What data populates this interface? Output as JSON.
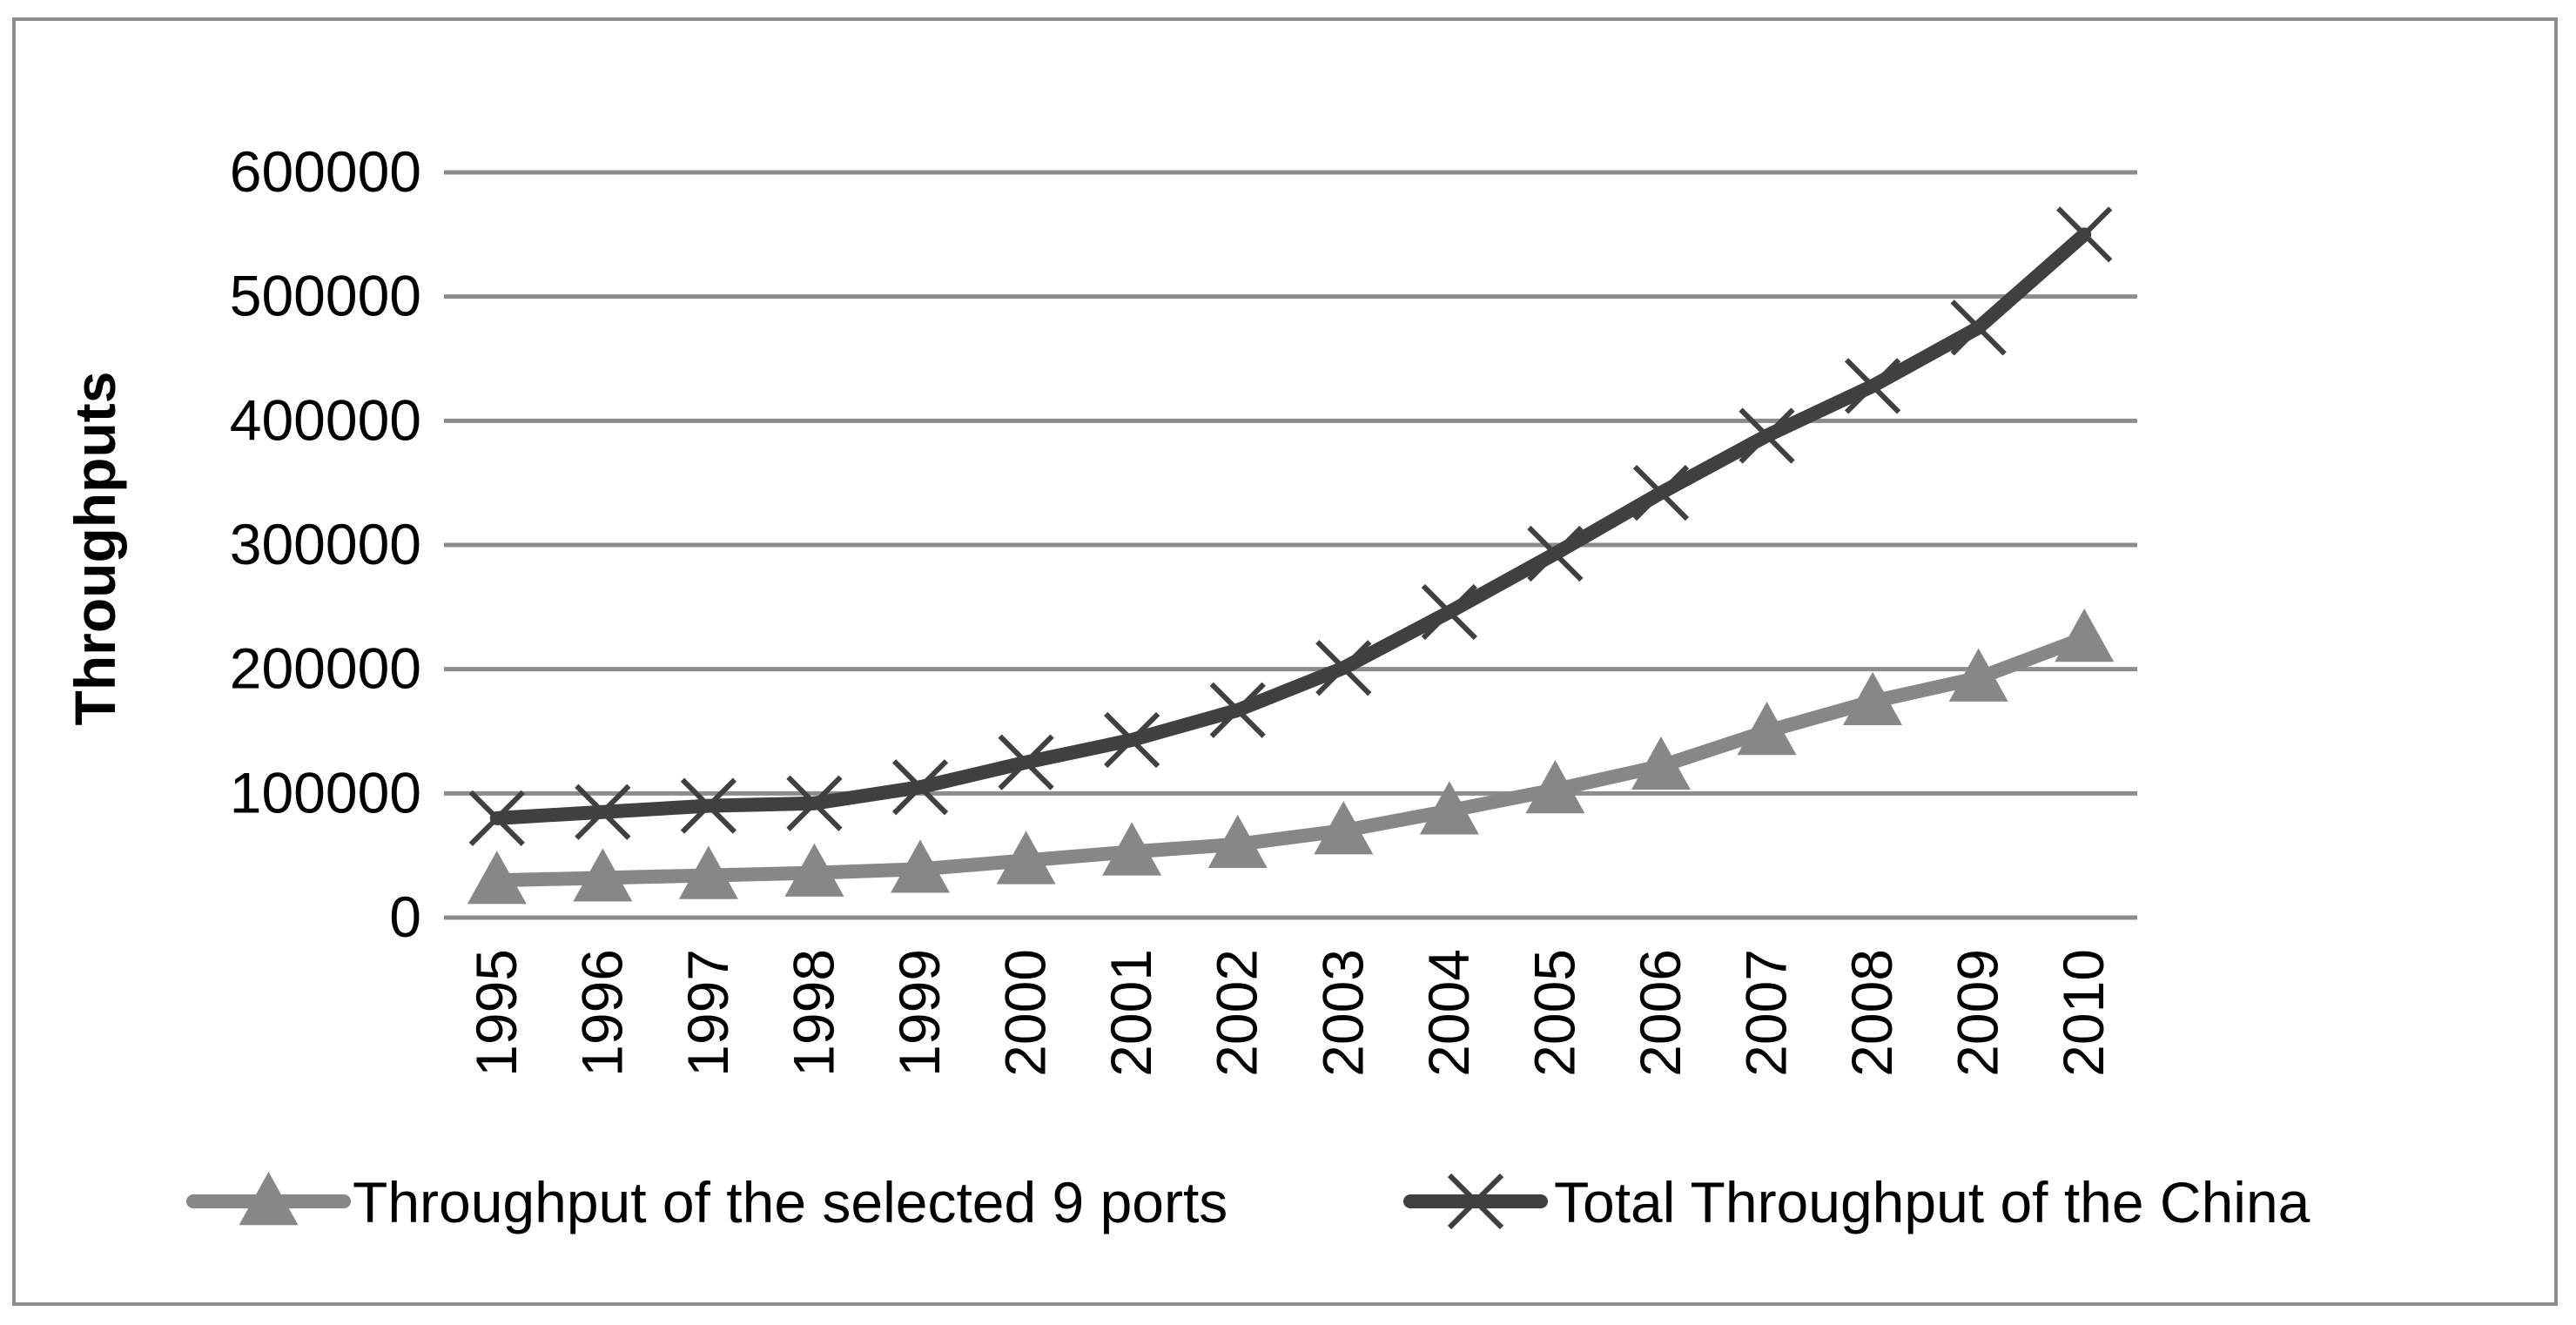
{
  "chart_data": {
    "type": "line",
    "title": "",
    "xlabel": "",
    "ylabel": "Throughputs",
    "ylim": [
      0,
      600000
    ],
    "yticks": [
      0,
      100000,
      200000,
      300000,
      400000,
      500000,
      600000
    ],
    "grid": "horizontal",
    "legend_position": "bottom",
    "categories": [
      "1995",
      "1996",
      "1997",
      "1998",
      "1999",
      "2000",
      "2001",
      "2002",
      "2003",
      "2004",
      "2005",
      "2006",
      "2007",
      "2008",
      "2009",
      "2010"
    ],
    "series": [
      {
        "name": "Throughput of the selected 9 ports",
        "marker": "triangle",
        "color": "#878787",
        "values": [
          30000,
          32000,
          34000,
          36000,
          39000,
          46000,
          53000,
          59000,
          70000,
          86000,
          103000,
          122000,
          150000,
          174000,
          193000,
          225000
        ]
      },
      {
        "name": "Total Throughput of the China",
        "marker": "x",
        "color": "#404040",
        "values": [
          80000,
          85000,
          90000,
          92000,
          105000,
          125000,
          143000,
          167000,
          201000,
          246000,
          293000,
          342000,
          388000,
          428000,
          475000,
          550000
        ]
      }
    ]
  }
}
